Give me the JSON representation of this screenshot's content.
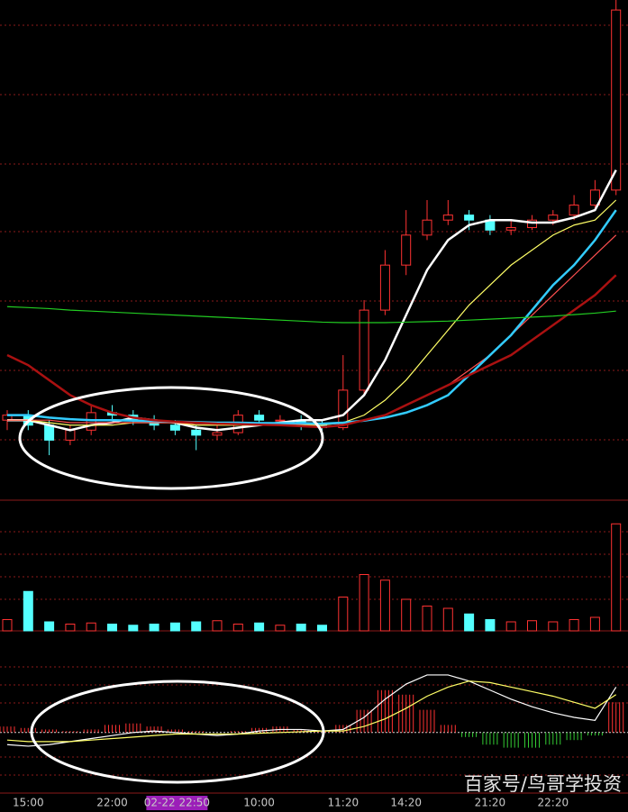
{
  "watermark": "百家号/鸟哥学投资",
  "chart_data": [
    {
      "type": "candlestick",
      "categories": [
        null,
        "15:00",
        null,
        null,
        null,
        "22:00",
        null,
        null,
        "02-22 22:50",
        null,
        null,
        null,
        "10:00",
        null,
        null,
        null,
        "11:20",
        null,
        null,
        "14:20",
        null,
        null,
        null,
        "21:20",
        null,
        null,
        "22:20",
        null,
        null,
        null
      ],
      "open": [
        16,
        17,
        15,
        12,
        14,
        17.5,
        17,
        16,
        15,
        14,
        13,
        13.5,
        17,
        16,
        16,
        15,
        14.5,
        22,
        38,
        47,
        53,
        56,
        57,
        56,
        54,
        54.5,
        56,
        57,
        59,
        62
      ],
      "high": [
        18,
        18,
        16,
        15,
        19,
        19,
        18,
        17,
        16,
        15,
        15,
        18,
        18,
        17,
        17,
        16,
        29,
        40,
        50,
        58,
        60,
        60,
        58,
        57,
        56,
        57,
        58,
        61,
        64,
        100
      ],
      "low": [
        14,
        14,
        9,
        11,
        13,
        16,
        15,
        14,
        13,
        10,
        12,
        13,
        15,
        15,
        14,
        13,
        14,
        21,
        37,
        45,
        52,
        55,
        54,
        53,
        53,
        54,
        55,
        56,
        58,
        61
      ],
      "close": [
        17,
        15,
        12,
        14,
        17.5,
        17,
        16,
        15,
        14,
        13,
        13.5,
        17,
        16,
        16,
        15,
        14.5,
        22,
        38,
        47,
        53,
        56,
        57,
        56,
        54,
        54.5,
        56,
        57,
        59,
        62,
        98
      ],
      "up_color": "#ff3232",
      "down_color": "#54ffff",
      "ylim": [
        0,
        100
      ],
      "series": [
        {
          "color": "#ffffff",
          "values": [
            16,
            16,
            15,
            14,
            15,
            15.5,
            16.5,
            16,
            15.5,
            14.5,
            14,
            14.5,
            15,
            15.5,
            16,
            16,
            17,
            21,
            28,
            37,
            46,
            52,
            55,
            56,
            56,
            55.5,
            55.5,
            56.5,
            58,
            66
          ]
        },
        {
          "color": "#ffff66",
          "values": [
            16,
            16,
            15.5,
            15,
            15,
            15,
            15.5,
            15.5,
            15.5,
            15,
            15,
            15,
            15,
            15,
            15,
            15,
            15.5,
            17,
            20,
            24,
            29,
            34,
            39,
            43,
            47,
            50,
            53,
            55,
            56,
            60
          ]
        },
        {
          "color": "#ff5050",
          "values": [
            16,
            16,
            16,
            15.5,
            15.5,
            15.5,
            15.5,
            15.5,
            15.5,
            15.3,
            15.2,
            15.2,
            15.2,
            15.2,
            15.2,
            15.2,
            15.3,
            16,
            17,
            19,
            21,
            23,
            26,
            29,
            33,
            37,
            41,
            45,
            49,
            53
          ]
        },
        {
          "color": "#33ccff",
          "values": [
            17,
            17,
            16.5,
            16.2,
            16,
            16,
            15.9,
            15.8,
            15.7,
            15.6,
            15.5,
            15.5,
            15.4,
            15.4,
            15.4,
            15.3,
            15.5,
            15.9,
            16.5,
            17.5,
            19,
            21,
            25,
            29,
            33,
            38,
            43,
            47,
            52,
            58
          ]
        },
        {
          "color": "#aa1111",
          "values": [
            29,
            27,
            24,
            21,
            19,
            17.5,
            16.5,
            16,
            15.7,
            15.5,
            15.3,
            15.2,
            15.1,
            15,
            14.8,
            14.6,
            15,
            16,
            17,
            19,
            21,
            23,
            25,
            27,
            29,
            32,
            35,
            38,
            41,
            45
          ]
        },
        {
          "color": "#22cc22",
          "values": [
            38.7,
            38.5,
            38.3,
            38,
            37.8,
            37.6,
            37.4,
            37.2,
            37,
            36.8,
            36.6,
            36.4,
            36.2,
            36,
            35.8,
            35.6,
            35.5,
            35.5,
            35.5,
            35.6,
            35.7,
            35.8,
            36,
            36.2,
            36.4,
            36.6,
            36.8,
            37.1,
            37.4,
            37.8
          ]
        }
      ]
    },
    {
      "type": "bar",
      "values": [
        10,
        35,
        8,
        6,
        7,
        6,
        5,
        6,
        7,
        8,
        9,
        6,
        7,
        5,
        6,
        5,
        30,
        50,
        45,
        28,
        22,
        20,
        15,
        10,
        8,
        9,
        8,
        10,
        12,
        95
      ],
      "ylim": [
        0,
        100
      ]
    },
    {
      "type": "macd",
      "values": [
        4,
        3,
        2,
        1,
        2,
        5,
        6,
        4,
        2,
        1,
        0,
        1,
        3,
        4,
        2,
        1,
        5,
        15,
        28,
        25,
        15,
        5,
        -3,
        -8,
        -10,
        -10,
        -8,
        -5,
        -2,
        20
      ],
      "pos_color": "#ff3232",
      "neg_color": "#33cc33",
      "ylim": [
        -40,
        60
      ],
      "series": [
        {
          "color": "#ffffff",
          "values": [
            -8,
            -9,
            -8,
            -6,
            -4,
            -2,
            0,
            1,
            0,
            -1,
            -2,
            -1,
            1,
            2,
            2,
            1,
            2,
            10,
            22,
            32,
            38,
            38,
            34,
            28,
            22,
            17,
            13,
            10,
            8,
            30
          ]
        },
        {
          "color": "#ffff66",
          "values": [
            -5,
            -6,
            -6,
            -6,
            -5,
            -4,
            -3,
            -2,
            -1,
            -1,
            -1,
            -1,
            -0.5,
            0,
            0.5,
            1,
            1,
            4,
            9,
            16,
            24,
            30,
            34,
            33,
            30,
            27,
            24,
            20,
            16,
            25
          ]
        }
      ]
    }
  ]
}
